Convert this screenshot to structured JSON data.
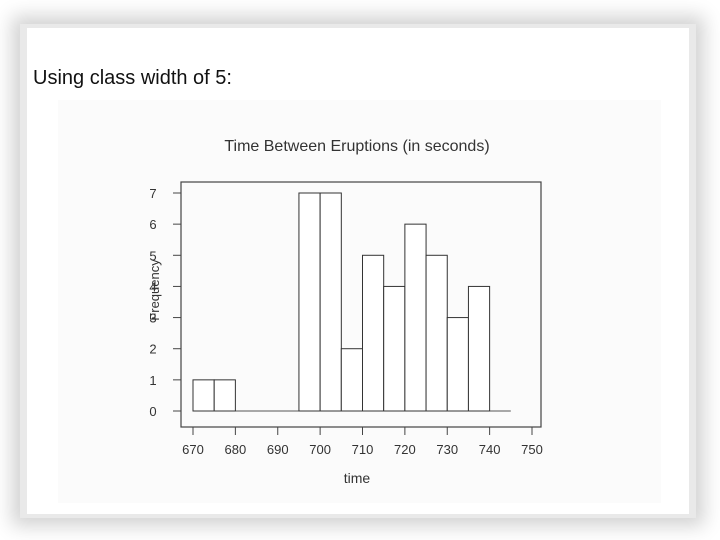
{
  "slide": {
    "heading": "Using class width of 5:"
  },
  "chart_data": {
    "type": "bar",
    "title": "Time Between Eruptions (in seconds)",
    "xlabel": "time",
    "ylabel": "Frequency",
    "bin_width": 5,
    "bins": [
      {
        "start": 670,
        "end": 675,
        "count": 1
      },
      {
        "start": 675,
        "end": 680,
        "count": 1
      },
      {
        "start": 680,
        "end": 685,
        "count": 0
      },
      {
        "start": 685,
        "end": 690,
        "count": 0
      },
      {
        "start": 690,
        "end": 695,
        "count": 0
      },
      {
        "start": 695,
        "end": 700,
        "count": 7
      },
      {
        "start": 700,
        "end": 705,
        "count": 7
      },
      {
        "start": 705,
        "end": 710,
        "count": 2
      },
      {
        "start": 710,
        "end": 715,
        "count": 5
      },
      {
        "start": 715,
        "end": 720,
        "count": 4
      },
      {
        "start": 720,
        "end": 725,
        "count": 6
      },
      {
        "start": 725,
        "end": 730,
        "count": 5
      },
      {
        "start": 730,
        "end": 735,
        "count": 3
      },
      {
        "start": 735,
        "end": 740,
        "count": 4
      },
      {
        "start": 740,
        "end": 745,
        "count": 0
      }
    ],
    "xlim": [
      670,
      750
    ],
    "ylim": [
      0,
      7
    ],
    "x_ticks": [
      "670",
      "680",
      "690",
      "700",
      "710",
      "720",
      "730",
      "740",
      "750"
    ],
    "y_ticks": [
      "0",
      "1",
      "2",
      "3",
      "4",
      "5",
      "6",
      "7"
    ],
    "grid": false,
    "bar_fill": "#ffffff",
    "bar_stroke": "#333333"
  }
}
